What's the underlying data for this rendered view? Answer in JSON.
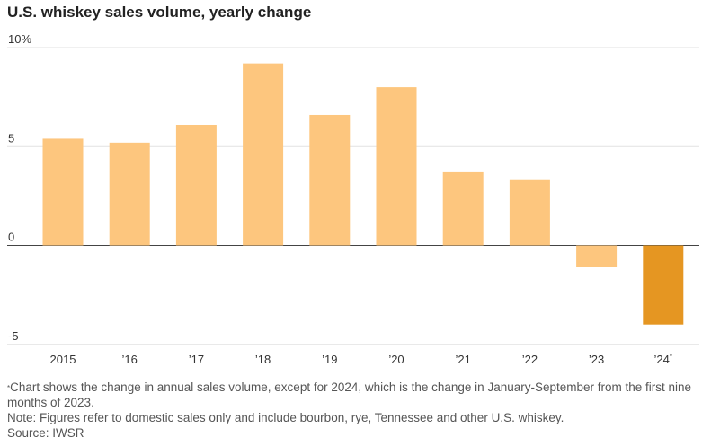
{
  "title": "U.S. whiskey sales volume, yearly change",
  "footnote_mark": "*",
  "footnote": "Chart shows the change in annual sales volume, except for 2024, which is the change in January-September from the first nine months of 2023.",
  "note": "Note: Figures refer to domestic sales only and include bourbon, rye, Tennessee and other U.S. whiskey.",
  "source": "Source: IWSR",
  "colors": {
    "bar": "#fdc67e",
    "highlight": "#e59622"
  },
  "chart_data": {
    "type": "bar",
    "title": "U.S. whiskey sales volume, yearly change",
    "categories": [
      "2015",
      "’16",
      "’17",
      "’18",
      "’19",
      "’20",
      "’21",
      "’22",
      "’23",
      "’24"
    ],
    "category_marks": [
      "",
      "",
      "",
      "",
      "",
      "",
      "",
      "",
      "",
      "*"
    ],
    "values": [
      5.4,
      5.2,
      6.1,
      9.2,
      6.6,
      8.0,
      3.7,
      3.3,
      -1.1,
      -4.0
    ],
    "highlight_index": 9,
    "yticks": [
      {
        "value": 10,
        "label": "10%"
      },
      {
        "value": 5,
        "label": "5"
      },
      {
        "value": 0,
        "label": "0"
      },
      {
        "value": -5,
        "label": "-5"
      }
    ],
    "ylim": [
      -5,
      10
    ],
    "grid": true,
    "legend": "none"
  }
}
